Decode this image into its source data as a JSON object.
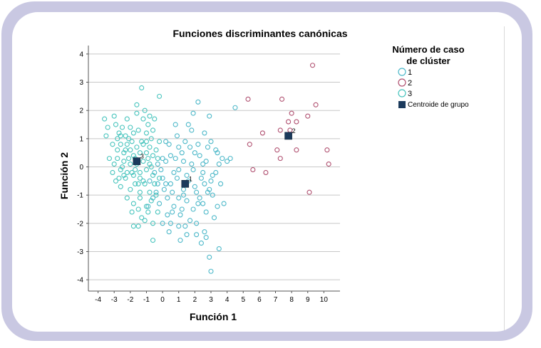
{
  "chart_data": {
    "type": "scatter",
    "title": "Funciones discriminantes canónicas",
    "xlabel": "Función 1",
    "ylabel": "Función 2",
    "xlim": [
      -4.6,
      11
    ],
    "ylim": [
      -4.4,
      4.3
    ],
    "xticks": [
      -4,
      -3,
      -2,
      -1,
      0,
      1,
      2,
      3,
      4,
      5,
      6,
      7,
      8,
      9,
      10
    ],
    "yticks": [
      4,
      3,
      2,
      1,
      0,
      -1,
      -2,
      -3,
      -4
    ],
    "grid": "horizontal",
    "legend": {
      "title": "Número de caso de clúster",
      "title_lines": [
        "Número de caso",
        "de clúster"
      ],
      "position": "right",
      "entries": [
        {
          "label": "1",
          "color": "#4db8c9"
        },
        {
          "label": "2",
          "color": "#b05070"
        },
        {
          "label": "3",
          "color": "#47c4bd"
        },
        {
          "label": "Centroide de grupo",
          "color": "#1b3a5c"
        }
      ]
    },
    "series": [
      {
        "name": "1",
        "color": "#4db8c9",
        "points": [
          [
            -0.5,
            -0.2
          ],
          [
            -0.3,
            0.1
          ],
          [
            0,
            -0.4
          ],
          [
            0.2,
            0.2
          ],
          [
            0.5,
            -0.6
          ],
          [
            0.8,
            0.3
          ],
          [
            1,
            -0.1
          ],
          [
            1.2,
            0.5
          ],
          [
            1.5,
            -0.3
          ],
          [
            1.8,
            0.1
          ],
          [
            2,
            -0.7
          ],
          [
            2.3,
            0.4
          ],
          [
            2.5,
            -0.2
          ],
          [
            2.8,
            0.7
          ],
          [
            3,
            -0.5
          ],
          [
            0.3,
            -1.1
          ],
          [
            0.7,
            -1.4
          ],
          [
            1.1,
            -1.7
          ],
          [
            1.5,
            -1.2
          ],
          [
            1.9,
            -1.5
          ],
          [
            2.3,
            -1.1
          ],
          [
            2.7,
            -1.6
          ],
          [
            3.1,
            -1
          ],
          [
            0.4,
            0.8
          ],
          [
            0.9,
            1.1
          ],
          [
            1.4,
            0.9
          ],
          [
            1.8,
            1.3
          ],
          [
            2.2,
            0.8
          ],
          [
            2.6,
            1.2
          ],
          [
            3,
            0.9
          ],
          [
            3.4,
            0.5
          ],
          [
            3.7,
            0.3
          ],
          [
            0.1,
            -0.8
          ],
          [
            0.6,
            -0.9
          ],
          [
            1.3,
            -0.8
          ],
          [
            2.1,
            -0.9
          ],
          [
            2.9,
            -0.8
          ],
          [
            3.3,
            -0.2
          ],
          [
            0,
            -2
          ],
          [
            0.4,
            -2.3
          ],
          [
            1,
            -2.1
          ],
          [
            1.5,
            -2.4
          ],
          [
            2.1,
            -2
          ],
          [
            2.6,
            -2.3
          ],
          [
            3.2,
            -1.8
          ],
          [
            1.1,
            -2.6
          ],
          [
            2.7,
            -2.5
          ],
          [
            2.9,
            -3.2
          ],
          [
            3,
            -3.7
          ],
          [
            3.5,
            -2.9
          ],
          [
            0.6,
            -1.6
          ],
          [
            1.7,
            -1.9
          ],
          [
            3.4,
            -1.4
          ],
          [
            4.2,
            0.3
          ],
          [
            4.5,
            2.1
          ],
          [
            2.2,
            2.3
          ],
          [
            2.9,
            1.8
          ],
          [
            1.9,
            1.9
          ],
          [
            0.8,
            1.5
          ],
          [
            1,
            -1.1
          ],
          [
            -0.8,
            -0.5
          ],
          [
            -0.9,
            -1.4
          ],
          [
            -0.4,
            -0.9
          ],
          [
            0.2,
            -0.6
          ],
          [
            0.5,
            0.4
          ],
          [
            1.6,
            -0.5
          ],
          [
            2.4,
            -0.4
          ],
          [
            0,
            0.3
          ],
          [
            2.7,
            0.2
          ],
          [
            3.6,
            -0.6
          ],
          [
            -0.2,
            -1.3
          ],
          [
            1.3,
            0.2
          ],
          [
            2,
            0.5
          ],
          [
            2.5,
            -1.3
          ],
          [
            3.3,
            0.6
          ],
          [
            0.9,
            -0.4
          ],
          [
            1.7,
            0.7
          ],
          [
            -0.1,
            -0.1
          ],
          [
            4,
            0.2
          ],
          [
            2.8,
            -0.9
          ],
          [
            0.3,
            -1.7
          ],
          [
            1.9,
            -0.1
          ],
          [
            2.4,
            -2.7
          ],
          [
            1.2,
            -1.5
          ],
          [
            3.1,
            -0.3
          ],
          [
            -0.6,
            -1.1
          ],
          [
            0.7,
            -0.2
          ],
          [
            1.4,
            -2.1
          ],
          [
            2.2,
            -1.3
          ],
          [
            3.5,
            0.1
          ],
          [
            0.2,
            0.9
          ],
          [
            1.6,
            1.5
          ],
          [
            2.5,
            0.1
          ],
          [
            0.5,
            -2
          ],
          [
            3.8,
            -1.3
          ],
          [
            1,
            0.7
          ],
          [
            2.1,
            -2.4
          ],
          [
            -0.3,
            -0.6
          ],
          [
            1.3,
            -1
          ],
          [
            2.6,
            -0.6
          ]
        ]
      },
      {
        "name": "2",
        "color": "#b05070",
        "points": [
          [
            5.3,
            2.4
          ],
          [
            5.4,
            0.8
          ],
          [
            5.6,
            -0.1
          ],
          [
            6.2,
            1.2
          ],
          [
            6.4,
            -0.2
          ],
          [
            7.1,
            0.6
          ],
          [
            7.3,
            1.3
          ],
          [
            7.3,
            0.3
          ],
          [
            7.4,
            2.4
          ],
          [
            7.8,
            1.6
          ],
          [
            8,
            1.9
          ],
          [
            8.3,
            0.6
          ],
          [
            8.3,
            1.6
          ],
          [
            9,
            1.8
          ],
          [
            9.1,
            -0.9
          ],
          [
            9.3,
            3.6
          ],
          [
            9.5,
            2.2
          ],
          [
            10.2,
            0.6
          ],
          [
            10.3,
            0.1
          ],
          [
            7.9,
            1.3
          ]
        ]
      },
      {
        "name": "3",
        "color": "#47c4bd",
        "points": [
          [
            -3.6,
            1.7
          ],
          [
            -3.4,
            1.4
          ],
          [
            -3,
            1.8
          ],
          [
            -2.9,
            1.5
          ],
          [
            -2.7,
            1.2
          ],
          [
            -2.5,
            1.4
          ],
          [
            -2.3,
            1.1
          ],
          [
            -2,
            1.4
          ],
          [
            -1.8,
            1.2
          ],
          [
            -1.5,
            1.3
          ],
          [
            -3.1,
            0.8
          ],
          [
            -2.8,
            0.6
          ],
          [
            -2.6,
            0.8
          ],
          [
            -2.4,
            0.5
          ],
          [
            -2.2,
            0.8
          ],
          [
            -2,
            0.6
          ],
          [
            -1.8,
            0.4
          ],
          [
            -1.6,
            0.7
          ],
          [
            -1.4,
            0.5
          ],
          [
            -1.2,
            0.8
          ],
          [
            -1,
            0.5
          ],
          [
            -0.8,
            0.7
          ],
          [
            -0.6,
            0.4
          ],
          [
            -0.4,
            0.6
          ],
          [
            -3,
            0.1
          ],
          [
            -2.8,
            0.3
          ],
          [
            -2.6,
            -0.1
          ],
          [
            -2.4,
            0.2
          ],
          [
            -2.2,
            -0.2
          ],
          [
            -2,
            0.1
          ],
          [
            -1.8,
            -0.3
          ],
          [
            -1.6,
            0.1
          ],
          [
            -1.4,
            -0.2
          ],
          [
            -1.2,
            0.2
          ],
          [
            -1,
            -0.1
          ],
          [
            -0.8,
            0.1
          ],
          [
            -0.6,
            -0.3
          ],
          [
            -2.9,
            -0.5
          ],
          [
            -2.6,
            -0.7
          ],
          [
            -2.3,
            -0.4
          ],
          [
            -2,
            -0.8
          ],
          [
            -1.7,
            -0.6
          ],
          [
            -1.4,
            -0.9
          ],
          [
            -1.1,
            -0.6
          ],
          [
            -0.8,
            -0.9
          ],
          [
            -0.5,
            -0.6
          ],
          [
            -2.2,
            -1.1
          ],
          [
            -1.8,
            -1.3
          ],
          [
            -1.4,
            -1.1
          ],
          [
            -1,
            -1.4
          ],
          [
            -0.7,
            -1.2
          ],
          [
            -1.7,
            -0.1
          ],
          [
            -1.3,
            0.9
          ],
          [
            -1,
            1.2
          ],
          [
            -0.7,
            1
          ],
          [
            -1.2,
            1.7
          ],
          [
            -0.9,
            1.5
          ],
          [
            -0.6,
            1.3
          ],
          [
            -1.6,
            2.2
          ],
          [
            -1.1,
            2
          ],
          [
            -0.8,
            1.8
          ],
          [
            -0.2,
            2.5
          ],
          [
            -1.3,
            2.8
          ],
          [
            -2.2,
            1.7
          ],
          [
            -1.6,
            1.9
          ],
          [
            -1.9,
            -1.6
          ],
          [
            -1.3,
            -1.8
          ],
          [
            -0.9,
            -1.6
          ],
          [
            -0.6,
            -2
          ],
          [
            -1.5,
            -2.1
          ],
          [
            -1.8,
            -2.1
          ],
          [
            -0.6,
            -2.6
          ],
          [
            -3.3,
            0.3
          ],
          [
            -3.1,
            -0.2
          ],
          [
            -2.7,
            -0.4
          ],
          [
            -2.1,
            1
          ],
          [
            -1.9,
            0.9
          ],
          [
            -0.3,
            0.3
          ],
          [
            -0.2,
            -0.4
          ],
          [
            -0.4,
            -1
          ],
          [
            -0.2,
            0.9
          ],
          [
            -2.5,
            0
          ],
          [
            -2.3,
            0.6
          ],
          [
            -1.5,
            -1.5
          ],
          [
            -1.1,
            -1.9
          ],
          [
            -0.9,
            0.3
          ],
          [
            -1.7,
            0.3
          ],
          [
            -2.8,
            1
          ],
          [
            -0.5,
            1.7
          ],
          [
            -3.5,
            1.1
          ],
          [
            -2.4,
            -0.3
          ],
          [
            -1.2,
            -0.5
          ],
          [
            -0.7,
            0
          ],
          [
            -1.9,
            -0.2
          ],
          [
            -2.1,
            0.3
          ],
          [
            -1.5,
            -0.6
          ],
          [
            -2.6,
            1.1
          ],
          [
            -1,
            0.9
          ],
          [
            -1.4,
            -0.4
          ],
          [
            -0.3,
            -1.6
          ]
        ]
      }
    ],
    "centroids": [
      {
        "group": "1",
        "x": 1.4,
        "y": -0.6,
        "label": "1"
      },
      {
        "group": "2",
        "x": 7.8,
        "y": 1.1,
        "label": "2"
      },
      {
        "group": "3",
        "x": -1.6,
        "y": 0.2,
        "label": "3"
      }
    ]
  }
}
